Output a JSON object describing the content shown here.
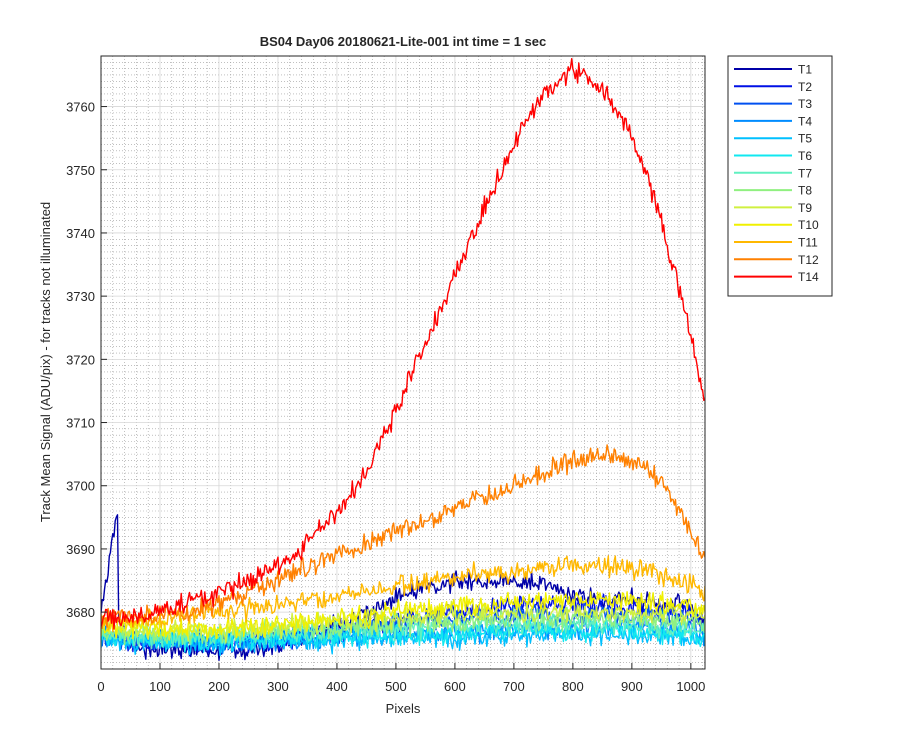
{
  "chart_data": {
    "type": "line",
    "title": "BS04 Day06 20180621-Lite-001 int time = 1 sec",
    "xlabel": "Pixels",
    "ylabel": "Track Mean Signal (ADU/pix) - for tracks not illuminated",
    "xlim": [
      0,
      1024
    ],
    "ylim": [
      3671,
      3768
    ],
    "xticks": [
      0,
      100,
      200,
      300,
      400,
      500,
      600,
      700,
      800,
      900,
      1000
    ],
    "yticks": [
      3680,
      3690,
      3700,
      3710,
      3720,
      3730,
      3740,
      3750,
      3760
    ],
    "grid": true,
    "minor_grid": true,
    "legend_position": "outside-top-right",
    "series": [
      {
        "name": "T1",
        "color": "#0000a8",
        "x": [
          0,
          5,
          10,
          15,
          20,
          25,
          28,
          30,
          50,
          100,
          150,
          200,
          250,
          300,
          350,
          400,
          450,
          500,
          550,
          600,
          650,
          700,
          750,
          800,
          850,
          900,
          950,
          1000,
          1024
        ],
        "y": [
          3681,
          3683,
          3685,
          3690,
          3692,
          3694,
          3694,
          3678,
          3675,
          3674,
          3674,
          3674,
          3674,
          3674.5,
          3676,
          3678,
          3680,
          3682,
          3684,
          3685,
          3685,
          3685,
          3684,
          3683,
          3682,
          3682,
          3681,
          3681,
          3678
        ]
      },
      {
        "name": "T2",
        "color": "#0010e6",
        "x": [
          0,
          100,
          200,
          300,
          400,
          500,
          600,
          700,
          800,
          900,
          1000,
          1024
        ],
        "y": [
          3676,
          3675,
          3675,
          3675.5,
          3677,
          3678.5,
          3680,
          3681,
          3681,
          3680.5,
          3680,
          3677
        ]
      },
      {
        "name": "T3",
        "color": "#0050f0",
        "x": [
          0,
          100,
          200,
          300,
          400,
          500,
          600,
          700,
          800,
          900,
          1000,
          1024
        ],
        "y": [
          3676,
          3675.5,
          3675.5,
          3676,
          3677,
          3678,
          3679,
          3679.5,
          3679.5,
          3679.5,
          3679,
          3677
        ]
      },
      {
        "name": "T4",
        "color": "#008cff",
        "x": [
          0,
          100,
          200,
          300,
          400,
          500,
          600,
          700,
          800,
          900,
          1000,
          1024
        ],
        "y": [
          3676,
          3675.5,
          3675,
          3675.5,
          3676,
          3676.5,
          3677,
          3677.5,
          3677.5,
          3677.5,
          3677,
          3676
        ]
      },
      {
        "name": "T5",
        "color": "#00c0ff",
        "x": [
          0,
          100,
          200,
          300,
          400,
          500,
          600,
          700,
          800,
          900,
          1000,
          1024
        ],
        "y": [
          3675.5,
          3675,
          3675,
          3675,
          3675.5,
          3676,
          3676,
          3676.5,
          3676.5,
          3676.5,
          3676,
          3675.5
        ]
      },
      {
        "name": "T6",
        "color": "#10e8f0",
        "x": [
          0,
          100,
          200,
          300,
          400,
          500,
          600,
          700,
          800,
          900,
          1000,
          1024
        ],
        "y": [
          3676,
          3675.5,
          3675.5,
          3675.5,
          3676,
          3676.5,
          3676.5,
          3677,
          3677,
          3677,
          3676.5,
          3676
        ]
      },
      {
        "name": "T7",
        "color": "#60f0c0",
        "x": [
          0,
          100,
          200,
          300,
          400,
          500,
          600,
          700,
          800,
          900,
          1000,
          1024
        ],
        "y": [
          3676.5,
          3676,
          3676,
          3676.5,
          3677,
          3677.5,
          3678,
          3678,
          3678,
          3678,
          3677.5,
          3677
        ]
      },
      {
        "name": "T8",
        "color": "#90f080",
        "x": [
          0,
          100,
          200,
          300,
          400,
          500,
          600,
          700,
          800,
          900,
          1000,
          1024
        ],
        "y": [
          3677,
          3676.5,
          3676.5,
          3677,
          3677.5,
          3678,
          3678.5,
          3679,
          3679,
          3679,
          3678.5,
          3678
        ]
      },
      {
        "name": "T9",
        "color": "#d0f040",
        "x": [
          0,
          100,
          200,
          300,
          400,
          500,
          600,
          700,
          800,
          900,
          1000,
          1024
        ],
        "y": [
          3677.5,
          3677,
          3677,
          3677.5,
          3678.5,
          3679,
          3679.5,
          3680,
          3680,
          3680,
          3679.5,
          3679
        ]
      },
      {
        "name": "T10",
        "color": "#f0f000",
        "x": [
          0,
          100,
          200,
          300,
          400,
          500,
          600,
          700,
          800,
          900,
          1000,
          1024
        ],
        "y": [
          3678,
          3677.5,
          3677.5,
          3678,
          3679,
          3680,
          3681,
          3681.5,
          3682,
          3681.5,
          3681,
          3680
        ]
      },
      {
        "name": "T11",
        "color": "#ffb800",
        "x": [
          0,
          100,
          200,
          300,
          400,
          500,
          600,
          700,
          800,
          900,
          950,
          1000,
          1024
        ],
        "y": [
          3678.5,
          3679,
          3680,
          3681,
          3682.5,
          3684,
          3685.5,
          3686.5,
          3687.5,
          3687,
          3686,
          3684.5,
          3683
        ]
      },
      {
        "name": "T12",
        "color": "#ff8000",
        "x": [
          0,
          100,
          150,
          200,
          250,
          300,
          350,
          400,
          450,
          500,
          550,
          600,
          650,
          700,
          750,
          800,
          850,
          900,
          925,
          950,
          975,
          1000,
          1024
        ],
        "y": [
          3679,
          3679.5,
          3680,
          3681.5,
          3683,
          3685,
          3687,
          3689.5,
          3691,
          3693,
          3694.5,
          3696.5,
          3698.5,
          3700,
          3702,
          3704,
          3705,
          3704,
          3703,
          3700,
          3697,
          3692.5,
          3688
        ]
      },
      {
        "name": "T14",
        "color": "#ff0000",
        "x": [
          0,
          50,
          100,
          150,
          200,
          250,
          300,
          350,
          400,
          450,
          475,
          500,
          550,
          600,
          650,
          700,
          750,
          800,
          850,
          900,
          925,
          950,
          975,
          1000,
          1024
        ],
        "y": [
          3679,
          3679,
          3680,
          3681.5,
          3683,
          3685,
          3687.5,
          3691,
          3695.5,
          3702,
          3707,
          3712,
          3722,
          3733,
          3744,
          3754,
          3762,
          3766,
          3763,
          3755,
          3749,
          3742,
          3733,
          3724,
          3712
        ]
      }
    ]
  }
}
